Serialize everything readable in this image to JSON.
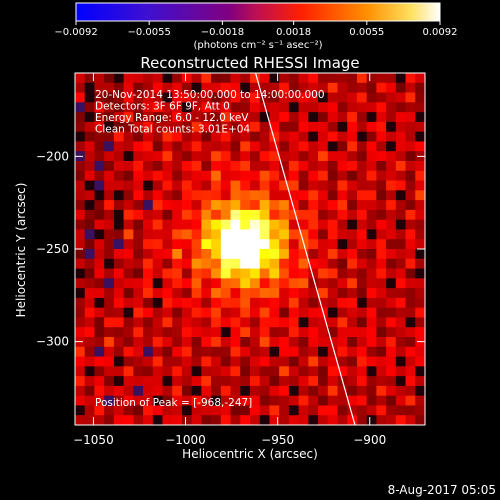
{
  "chart_data": {
    "type": "heatmap",
    "title": "Reconstructed RHESSI Image",
    "xlabel": "Heliocentric X (arcsec)",
    "ylabel": "Heliocentric Y (arcsec)",
    "xlim": [
      -1060,
      -870
    ],
    "ylim": [
      -345,
      -155
    ],
    "x_ticks": [
      {
        "value": -1050,
        "label": "−1050"
      },
      {
        "value": -1000,
        "label": "−1000"
      },
      {
        "value": -950,
        "label": "−950"
      },
      {
        "value": -900,
        "label": "−900"
      }
    ],
    "y_ticks": [
      {
        "value": -200,
        "label": "−200"
      },
      {
        "value": -250,
        "label": "−250"
      },
      {
        "value": -300,
        "label": "−300"
      }
    ],
    "colorbar": {
      "range": [
        -0.0092,
        0.0092
      ],
      "ticks": [
        {
          "value": -0.0092,
          "label": "−0.0092"
        },
        {
          "value": -0.0055,
          "label": "−0.0055"
        },
        {
          "value": -0.0018,
          "label": "−0.0018"
        },
        {
          "value": 0.0018,
          "label": "0.0018"
        },
        {
          "value": 0.0055,
          "label": "0.0055"
        },
        {
          "value": 0.0092,
          "label": "0.0092"
        }
      ],
      "units": "(photons cm⁻² s⁻¹ asec⁻²)"
    },
    "annotations": [
      "20-Nov-2014 13:50:00.000 to 14:00:00.000",
      "Detectors: 3F 6F 9F, Att 0",
      "Energy Range: 6.0 - 12.0 keV",
      "Clean     Total counts: 3.01E+04"
    ],
    "peak_text": "Position of Peak = [-968,-247]",
    "peak": {
      "x": -968,
      "y": -247
    },
    "limb_line": [
      {
        "x": -962,
        "y": -155
      },
      {
        "x": -908,
        "y": -345
      }
    ],
    "footer": "8-Aug-2017 05:05",
    "colormap": "hot",
    "limb_color": "#ffffff"
  }
}
